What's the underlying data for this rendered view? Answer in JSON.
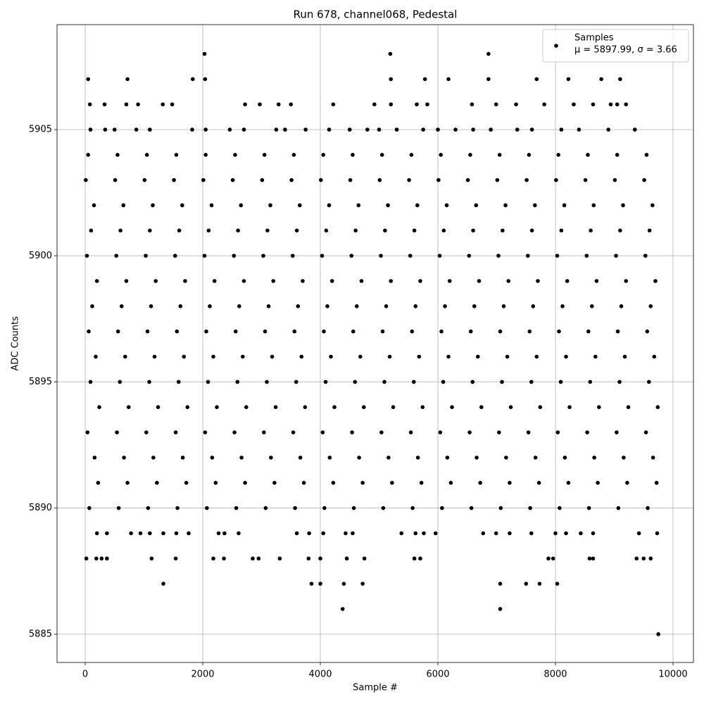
{
  "chart_data": {
    "type": "scatter",
    "title": "Run 678, channel068, Pedestal",
    "xlabel": "Sample #",
    "ylabel": "ADC Counts",
    "xlim": [
      -479,
      10347
    ],
    "ylim": [
      5883.88,
      5909.16
    ],
    "xticks": [
      0,
      2000,
      4000,
      6000,
      8000,
      10000
    ],
    "yticks": [
      5885,
      5890,
      5895,
      5900,
      5905
    ],
    "grid": true,
    "legend": "upper right",
    "annotation": "μ = 5897.99, σ = 3.66",
    "series": [
      {
        "name": "Samples",
        "color": "#000000",
        "x": [
          4380,
          7060,
          9750,
          2030,
          5190,
          6860,
          50,
          720,
          1830,
          2040,
          5200,
          5780,
          6180,
          6860,
          7680,
          8220,
          8780,
          9100,
          1330,
          3850,
          4000,
          4400,
          4720,
          7060,
          7500,
          7730,
          8030,
          80,
          330,
          700,
          900,
          1320,
          1480,
          2720,
          2970,
          3290,
          3500,
          4220,
          4920,
          5200,
          5640,
          5820,
          6580,
          6990,
          7330,
          7810,
          8310,
          8640,
          8940,
          9050,
          9200,
          20,
          190,
          280,
          370,
          1130,
          1540,
          2180,
          2360,
          2850,
          2950,
          3310,
          3800,
          4000,
          4450,
          4750,
          5600,
          5700,
          7880,
          7960,
          8580,
          8640,
          9380,
          9500,
          9620,
          200,
          370,
          780,
          940,
          1100,
          1330,
          1550,
          1760,
          2270,
          2370,
          2610,
          3600,
          3810,
          4050,
          4430,
          4550,
          5380,
          5620,
          5760,
          5960,
          6770,
          6990,
          7220,
          7590,
          8000,
          8180,
          8430,
          8640,
          9420,
          9730,
          90,
          340,
          500,
          870,
          1100,
          1820,
          2050,
          2460,
          2700,
          3250,
          3400,
          3750,
          4150,
          4500,
          4800,
          5000,
          5300,
          5750,
          6000,
          6300,
          6600,
          6900,
          7350,
          7600,
          8100,
          8400,
          8900,
          9350,
          50,
          550,
          1050,
          1550,
          2050,
          2550,
          3050,
          3550,
          4050,
          4550,
          5050,
          5550,
          6050,
          6550,
          7050,
          7550,
          8050,
          8550,
          9050,
          9550,
          10,
          510,
          1010,
          1510,
          2010,
          2510,
          3010,
          3510,
          4010,
          4510,
          5010,
          5510,
          6010,
          6510,
          7010,
          7510,
          8010,
          8510,
          9010,
          9510,
          150,
          650,
          1150,
          1650,
          2150,
          2650,
          3150,
          3650,
          4150,
          4650,
          5150,
          5650,
          6150,
          6650,
          7150,
          7650,
          8150,
          8650,
          9150,
          9650,
          100,
          600,
          1100,
          1600,
          2100,
          2600,
          3100,
          3600,
          4100,
          4600,
          5100,
          5600,
          6100,
          6600,
          7100,
          7600,
          8100,
          8600,
          9100,
          9600,
          30,
          530,
          1030,
          1530,
          2030,
          2530,
          3030,
          3530,
          4030,
          4530,
          5030,
          5530,
          6030,
          6530,
          7030,
          7530,
          8030,
          8530,
          9030,
          9530,
          200,
          700,
          1200,
          1700,
          2200,
          2700,
          3200,
          3700,
          4200,
          4700,
          5200,
          5700,
          6200,
          6700,
          7200,
          7700,
          8200,
          8700,
          9200,
          9700,
          120,
          620,
          1120,
          1620,
          2120,
          2620,
          3120,
          3620,
          4120,
          4620,
          5120,
          5620,
          6120,
          6620,
          7120,
          7620,
          8120,
          8620,
          9120,
          9620,
          60,
          560,
          1060,
          1560,
          2060,
          2560,
          3060,
          3560,
          4060,
          4560,
          5060,
          5560,
          6060,
          6560,
          7060,
          7560,
          8060,
          8560,
          9060,
          9560,
          180,
          680,
          1180,
          1680,
          2180,
          2680,
          3180,
          3680,
          4180,
          4680,
          5180,
          5680,
          6180,
          6680,
          7180,
          7680,
          8180,
          8680,
          9180,
          9680,
          90,
          590,
          1090,
          1590,
          2090,
          2590,
          3090,
          3590,
          4090,
          4590,
          5090,
          5590,
          6090,
          6590,
          7090,
          7590,
          8090,
          8590,
          9090,
          9590,
          240,
          740,
          1240,
          1740,
          2240,
          2740,
          3240,
          3740,
          4240,
          4740,
          5240,
          5740,
          6240,
          6740,
          7240,
          7740,
          8240,
          8740,
          9240,
          9740,
          40,
          540,
          1040,
          1540,
          2040,
          2540,
          3040,
          3540,
          4040,
          4540,
          5040,
          5540,
          6040,
          6540,
          7040,
          7540,
          8040,
          8540,
          9040,
          9540,
          160,
          660,
          1160,
          1660,
          2160,
          2660,
          3160,
          3660,
          4160,
          4660,
          5160,
          5660,
          6160,
          6660,
          7160,
          7660,
          8160,
          8660,
          9160,
          9660,
          220,
          720,
          1220,
          1720,
          2220,
          2720,
          3220,
          3720,
          4220,
          4720,
          5220,
          5720,
          6220,
          6720,
          7220,
          7720,
          8220,
          8720,
          9220,
          9720,
          70,
          570,
          1070,
          1570,
          2070,
          2570,
          3070,
          3570,
          4070,
          4570,
          5070,
          5570,
          6070,
          6570,
          7070,
          7570,
          8070,
          8570,
          9070,
          9570
        ],
        "y": [
          5886,
          5886,
          5885,
          5908,
          5908,
          5908,
          5907,
          5907,
          5907,
          5907,
          5907,
          5907,
          5907,
          5907,
          5907,
          5907,
          5907,
          5907,
          5887,
          5887,
          5887,
          5887,
          5887,
          5887,
          5887,
          5887,
          5887,
          5906,
          5906,
          5906,
          5906,
          5906,
          5906,
          5906,
          5906,
          5906,
          5906,
          5906,
          5906,
          5906,
          5906,
          5906,
          5906,
          5906,
          5906,
          5906,
          5906,
          5906,
          5906,
          5906,
          5906,
          5888,
          5888,
          5888,
          5888,
          5888,
          5888,
          5888,
          5888,
          5888,
          5888,
          5888,
          5888,
          5888,
          5888,
          5888,
          5888,
          5888,
          5888,
          5888,
          5888,
          5888,
          5888,
          5888,
          5888,
          5889,
          5889,
          5889,
          5889,
          5889,
          5889,
          5889,
          5889,
          5889,
          5889,
          5889,
          5889,
          5889,
          5889,
          5889,
          5889,
          5889,
          5889,
          5889,
          5889,
          5889,
          5889,
          5889,
          5889,
          5889,
          5889,
          5889,
          5889,
          5889,
          5889,
          5905,
          5905,
          5905,
          5905,
          5905,
          5905,
          5905,
          5905,
          5905,
          5905,
          5905,
          5905,
          5905,
          5905,
          5905,
          5905,
          5905,
          5905,
          5905,
          5905,
          5905,
          5905,
          5905,
          5905,
          5905,
          5905,
          5905,
          5905,
          5904,
          5904,
          5904,
          5904,
          5904,
          5904,
          5904,
          5904,
          5904,
          5904,
          5904,
          5904,
          5904,
          5904,
          5904,
          5904,
          5904,
          5904,
          5904,
          5904,
          5903,
          5903,
          5903,
          5903,
          5903,
          5903,
          5903,
          5903,
          5903,
          5903,
          5903,
          5903,
          5903,
          5903,
          5903,
          5903,
          5903,
          5903,
          5903,
          5903,
          5902,
          5902,
          5902,
          5902,
          5902,
          5902,
          5902,
          5902,
          5902,
          5902,
          5902,
          5902,
          5902,
          5902,
          5902,
          5902,
          5902,
          5902,
          5902,
          5902,
          5901,
          5901,
          5901,
          5901,
          5901,
          5901,
          5901,
          5901,
          5901,
          5901,
          5901,
          5901,
          5901,
          5901,
          5901,
          5901,
          5901,
          5901,
          5901,
          5901,
          5900,
          5900,
          5900,
          5900,
          5900,
          5900,
          5900,
          5900,
          5900,
          5900,
          5900,
          5900,
          5900,
          5900,
          5900,
          5900,
          5900,
          5900,
          5900,
          5900,
          5899,
          5899,
          5899,
          5899,
          5899,
          5899,
          5899,
          5899,
          5899,
          5899,
          5899,
          5899,
          5899,
          5899,
          5899,
          5899,
          5899,
          5899,
          5899,
          5899,
          5898,
          5898,
          5898,
          5898,
          5898,
          5898,
          5898,
          5898,
          5898,
          5898,
          5898,
          5898,
          5898,
          5898,
          5898,
          5898,
          5898,
          5898,
          5898,
          5898,
          5897,
          5897,
          5897,
          5897,
          5897,
          5897,
          5897,
          5897,
          5897,
          5897,
          5897,
          5897,
          5897,
          5897,
          5897,
          5897,
          5897,
          5897,
          5897,
          5897,
          5896,
          5896,
          5896,
          5896,
          5896,
          5896,
          5896,
          5896,
          5896,
          5896,
          5896,
          5896,
          5896,
          5896,
          5896,
          5896,
          5896,
          5896,
          5896,
          5896,
          5895,
          5895,
          5895,
          5895,
          5895,
          5895,
          5895,
          5895,
          5895,
          5895,
          5895,
          5895,
          5895,
          5895,
          5895,
          5895,
          5895,
          5895,
          5895,
          5895,
          5894,
          5894,
          5894,
          5894,
          5894,
          5894,
          5894,
          5894,
          5894,
          5894,
          5894,
          5894,
          5894,
          5894,
          5894,
          5894,
          5894,
          5894,
          5894,
          5894,
          5893,
          5893,
          5893,
          5893,
          5893,
          5893,
          5893,
          5893,
          5893,
          5893,
          5893,
          5893,
          5893,
          5893,
          5893,
          5893,
          5893,
          5893,
          5893,
          5893,
          5892,
          5892,
          5892,
          5892,
          5892,
          5892,
          5892,
          5892,
          5892,
          5892,
          5892,
          5892,
          5892,
          5892,
          5892,
          5892,
          5892,
          5892,
          5892,
          5892,
          5891,
          5891,
          5891,
          5891,
          5891,
          5891,
          5891,
          5891,
          5891,
          5891,
          5891,
          5891,
          5891,
          5891,
          5891,
          5891,
          5891,
          5891,
          5891,
          5891,
          5890,
          5890,
          5890,
          5890,
          5890,
          5890,
          5890,
          5890,
          5890,
          5890,
          5890,
          5890,
          5890,
          5890,
          5890,
          5890,
          5890,
          5890,
          5890,
          5890
        ]
      }
    ]
  }
}
